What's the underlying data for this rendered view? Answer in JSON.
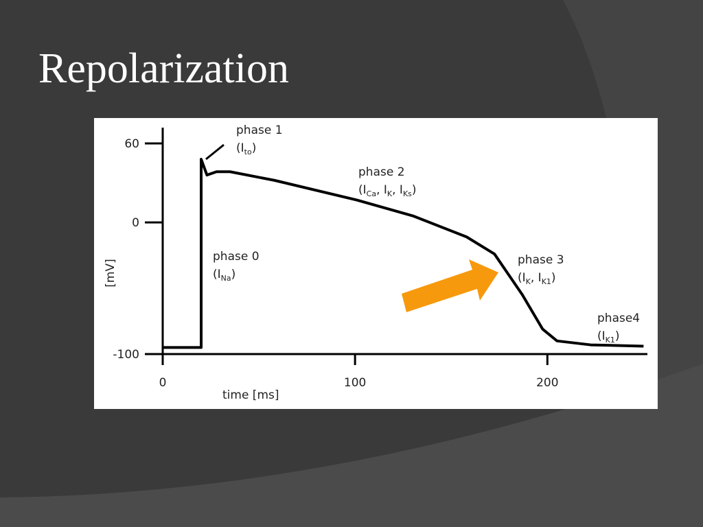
{
  "slide": {
    "title": "Repolarization"
  },
  "chart_data": {
    "type": "line",
    "x_label": "time [ms]",
    "y_label": "[mV]",
    "x": [
      0,
      20,
      20,
      23,
      28,
      35,
      58,
      101,
      130,
      158,
      172.5,
      187,
      197.5,
      205,
      222.5,
      250
    ],
    "series": [
      {
        "color": "#000000",
        "values": [
          -95,
          -95,
          48,
          36,
          38.5,
          38.5,
          32,
          17,
          5,
          -11,
          -24,
          -55,
          -81,
          -90,
          -93,
          -94
        ]
      }
    ],
    "xlim": [
      0,
      252
    ],
    "ylim": [
      -100,
      72
    ],
    "xticks": [
      0,
      100,
      200
    ],
    "yticks": [
      60,
      0,
      -100
    ],
    "annotations": [
      {
        "text": "phase 1",
        "current": [
          {
            "t": "(I"
          },
          {
            "t": "to",
            "sub": true
          },
          {
            "t": ")"
          }
        ]
      },
      {
        "text": "phase 2",
        "current": [
          {
            "t": "(I"
          },
          {
            "t": "Ca",
            "sub": true
          },
          {
            "t": ", I"
          },
          {
            "t": "K",
            "sub": true
          },
          {
            "t": ", I"
          },
          {
            "t": "Ks",
            "sub": true
          },
          {
            "t": ")"
          }
        ]
      },
      {
        "text": "phase 0",
        "current": [
          {
            "t": "(I"
          },
          {
            "t": "Na",
            "sub": true
          },
          {
            "t": ")"
          }
        ]
      },
      {
        "text": "phase 3",
        "current": [
          {
            "t": "(I"
          },
          {
            "t": "K",
            "sub": true
          },
          {
            "t": ", I"
          },
          {
            "t": "K1",
            "sub": true
          },
          {
            "t": ")"
          }
        ]
      },
      {
        "text": "phase4",
        "current": [
          {
            "t": "(I"
          },
          {
            "t": "K1",
            "sub": true
          },
          {
            "t": ")"
          }
        ]
      }
    ]
  }
}
